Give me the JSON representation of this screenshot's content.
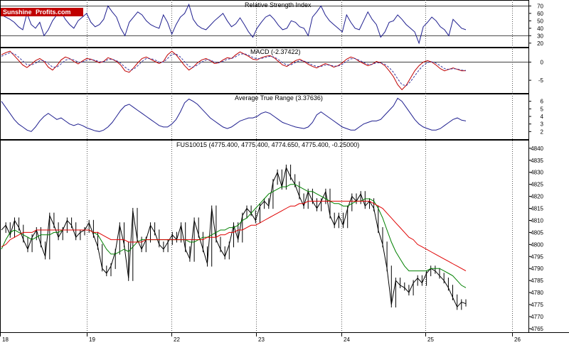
{
  "logo": {
    "part1": "Sunshine",
    "part2": "Profits.com",
    "bg": "#c00000"
  },
  "chart_data": [
    {
      "type": "line",
      "title": "Relative Strength Index",
      "yticks": [
        20,
        30,
        40,
        50,
        60,
        70
      ],
      "ylim": [
        15,
        78
      ],
      "reference_lines": [
        30,
        70
      ],
      "series": [
        {
          "color": "#1f1f8f",
          "values": [
            58,
            55,
            52,
            48,
            42,
            38,
            60,
            45,
            40,
            48,
            30,
            38,
            50,
            58,
            62,
            52,
            45,
            40,
            50,
            55,
            60,
            48,
            42,
            45,
            52,
            70,
            62,
            55,
            40,
            30,
            48,
            55,
            62,
            58,
            50,
            45,
            42,
            40,
            58,
            48,
            32,
            45,
            55,
            60,
            72,
            52,
            44,
            40,
            38,
            44,
            50,
            55,
            60,
            50,
            42,
            46,
            54,
            45,
            35,
            28,
            40,
            48,
            55,
            58,
            52,
            44,
            38,
            40,
            50,
            48,
            42,
            40,
            30,
            55,
            62,
            70,
            58,
            50,
            45,
            40,
            35,
            58,
            48,
            40,
            38,
            50,
            62,
            52,
            45,
            28,
            35,
            48,
            50,
            58,
            52,
            45,
            40,
            35,
            20,
            42,
            48,
            55,
            50,
            42,
            38,
            30,
            52,
            46,
            40,
            38
          ]
        }
      ]
    },
    {
      "type": "line",
      "title": "MACD (-2.37422)",
      "yticks": [
        0,
        -5
      ],
      "ylim": [
        -8.5,
        4
      ],
      "reference_lines": [
        0
      ],
      "series": [
        {
          "color": "#c00000",
          "values": [
            2.0,
            2.6,
            3.0,
            1.8,
            0.5,
            -0.8,
            -1.5,
            -0.6,
            0.4,
            1.0,
            0.2,
            -1.4,
            -2.2,
            -1.0,
            0.6,
            1.4,
            1.0,
            0.2,
            -0.5,
            0.3,
            1.0,
            0.8,
            0.3,
            -0.2,
            0.2,
            1.2,
            0.8,
            0.2,
            -0.8,
            -2.4,
            -2.8,
            -1.6,
            -0.2,
            1.0,
            1.4,
            0.8,
            0.2,
            -0.4,
            0.2,
            2.0,
            3.0,
            2.0,
            0.5,
            -1.0,
            -2.2,
            -1.4,
            -0.2,
            0.6,
            1.0,
            0.4,
            -0.4,
            -0.2,
            0.6,
            1.2,
            1.0,
            2.0,
            2.8,
            2.2,
            1.6,
            0.8,
            0.6,
            1.2,
            1.6,
            1.8,
            1.2,
            0.2,
            -0.8,
            -1.2,
            -0.4,
            0.4,
            0.8,
            0.2,
            -0.6,
            -1.2,
            -1.6,
            -1.0,
            -0.4,
            -0.8,
            -1.4,
            -1.0,
            -0.2,
            0.8,
            1.4,
            1.0,
            0.2,
            -0.4,
            -1.0,
            -0.6,
            0.2,
            -0.2,
            -1.0,
            -2.4,
            -4.0,
            -6.2,
            -7.6,
            -6.4,
            -4.4,
            -2.4,
            -1.0,
            0.0,
            0.4,
            0.0,
            -0.8,
            -1.8,
            -2.4,
            -2.0,
            -1.6,
            -2.0,
            -2.4,
            -2.37
          ]
        },
        {
          "color": "#3a3aa0",
          "values": [
            1.6,
            2.1,
            2.6,
            2.3,
            1.4,
            0.3,
            -0.7,
            -0.8,
            -0.3,
            0.4,
            0.4,
            -0.4,
            -1.4,
            -1.4,
            -0.5,
            0.5,
            0.9,
            0.6,
            0.0,
            0.0,
            0.5,
            0.7,
            0.5,
            0.1,
            0.1,
            0.7,
            0.8,
            0.4,
            -0.3,
            -1.4,
            -2.2,
            -2.0,
            -1.0,
            0.2,
            1.0,
            1.0,
            0.6,
            0.0,
            0.0,
            1.0,
            2.2,
            2.2,
            1.4,
            0.1,
            -1.2,
            -1.4,
            -0.8,
            0.0,
            0.6,
            0.6,
            0.0,
            -0.2,
            0.2,
            0.8,
            1.0,
            1.5,
            2.2,
            2.3,
            1.9,
            1.3,
            0.9,
            1.0,
            1.3,
            1.6,
            1.4,
            0.7,
            -0.2,
            -0.8,
            -0.7,
            -0.1,
            0.4,
            0.3,
            -0.2,
            -0.8,
            -1.2,
            -1.2,
            -0.8,
            -0.8,
            -1.1,
            -1.1,
            -0.6,
            0.2,
            0.9,
            1.0,
            0.5,
            -0.1,
            -0.6,
            -0.6,
            -0.2,
            -0.2,
            -0.6,
            -1.5,
            -2.8,
            -4.6,
            -6.2,
            -6.5,
            -5.4,
            -3.8,
            -2.2,
            -0.9,
            -0.1,
            0.1,
            -0.3,
            -1.0,
            -1.8,
            -2.0,
            -1.8,
            -1.9,
            -2.2,
            -2.3
          ]
        }
      ]
    },
    {
      "type": "line",
      "title": "Average True Range (3.37636)",
      "yticks": [
        2,
        3,
        4,
        5,
        6
      ],
      "ylim": [
        1,
        7
      ],
      "reference_lines": [],
      "series": [
        {
          "color": "#1f1f8f",
          "values": [
            6.0,
            5.2,
            4.4,
            3.6,
            3.0,
            2.6,
            2.2,
            2.0,
            2.6,
            3.4,
            4.0,
            4.4,
            4.0,
            3.6,
            3.8,
            3.4,
            3.0,
            2.8,
            3.0,
            2.8,
            2.5,
            2.3,
            2.1,
            2.0,
            2.2,
            2.6,
            3.2,
            4.0,
            4.8,
            5.4,
            5.6,
            5.2,
            4.8,
            4.4,
            4.0,
            3.6,
            3.2,
            2.8,
            2.6,
            2.6,
            3.0,
            3.6,
            4.6,
            5.8,
            6.3,
            6.0,
            5.6,
            5.0,
            4.4,
            3.8,
            3.4,
            3.0,
            2.6,
            2.4,
            2.6,
            3.0,
            3.4,
            3.6,
            3.8,
            3.8,
            4.0,
            4.4,
            4.6,
            4.4,
            4.0,
            3.6,
            3.2,
            3.0,
            2.8,
            2.6,
            2.5,
            2.4,
            2.6,
            3.2,
            4.2,
            4.6,
            4.2,
            3.8,
            3.4,
            3.0,
            2.6,
            2.4,
            2.2,
            2.2,
            2.6,
            3.0,
            3.2,
            3.4,
            3.4,
            3.6,
            4.2,
            4.8,
            5.4,
            6.4,
            6.0,
            5.2,
            4.4,
            3.6,
            3.0,
            2.6,
            2.4,
            2.2,
            2.2,
            2.4,
            2.8,
            3.2,
            3.6,
            3.8,
            3.5,
            3.4
          ]
        }
      ]
    },
    {
      "type": "line",
      "title": "FUS10015 (4775.400, 4775.400, 4774.650, 4775.400, -0.25000)",
      "yticks": [
        4765,
        4770,
        4775,
        4780,
        4785,
        4790,
        4795,
        4800,
        4805,
        4810,
        4815,
        4820,
        4825,
        4830,
        4835,
        4840
      ],
      "ylim": [
        4763.5,
        4843.5
      ],
      "xticks": [
        "18",
        "19",
        "22",
        "23",
        "24",
        "25",
        "26"
      ],
      "series": [
        {
          "name": "price",
          "color": "#000000",
          "values": [
            4806,
            4808,
            4804,
            4810,
            4807,
            4802,
            4798,
            4803,
            4806,
            4800,
            4795,
            4812,
            4808,
            4803,
            4806,
            4810,
            4808,
            4803,
            4805,
            4806,
            4809,
            4804,
            4799,
            4790,
            4788,
            4791,
            4797,
            4808,
            4800,
            4786,
            4814,
            4802,
            4798,
            4802,
            4808,
            4805,
            4800,
            4798,
            4801,
            4804,
            4802,
            4808,
            4798,
            4794,
            4810,
            4804,
            4798,
            4792,
            4815,
            4802,
            4798,
            4795,
            4800,
            4808,
            4802,
            4812,
            4815,
            4813,
            4810,
            4816,
            4818,
            4816,
            4826,
            4830,
            4824,
            4832,
            4828,
            4825,
            4820,
            4816,
            4822,
            4818,
            4815,
            4818,
            4822,
            4812,
            4808,
            4812,
            4808,
            4815,
            4820,
            4818,
            4821,
            4816,
            4818,
            4815,
            4806,
            4800,
            4790,
            4775,
            4785,
            4783,
            4782,
            4780,
            4784,
            4786,
            4784,
            4788,
            4790,
            4789,
            4787,
            4785,
            4782,
            4778,
            4774,
            4776,
            4775.4
          ]
        },
        {
          "name": "short moving average",
          "color": "#008000",
          "values": [
            4798,
            4802,
            4805,
            4806,
            4805,
            4804,
            4803,
            4802,
            4803,
            4804,
            4804,
            4804,
            4805,
            4805,
            4806,
            4806,
            4806,
            4806,
            4806,
            4806,
            4806,
            4805,
            4804,
            4801,
            4798,
            4796,
            4796,
            4797,
            4798,
            4797,
            4799,
            4801,
            4802,
            4802,
            4802,
            4802,
            4802,
            4802,
            4802,
            4802,
            4802,
            4802,
            4802,
            4801,
            4801,
            4802,
            4803,
            4803,
            4804,
            4805,
            4806,
            4806,
            4807,
            4807,
            4808,
            4810,
            4811,
            4813,
            4815,
            4817,
            4819,
            4821,
            4822,
            4823,
            4824,
            4824,
            4825,
            4825,
            4824,
            4823,
            4822,
            4822,
            4821,
            4820,
            4819,
            4818,
            4817,
            4817,
            4816,
            4816,
            4817,
            4818,
            4818,
            4819,
            4819,
            4818,
            4815,
            4811,
            4806,
            4801,
            4797,
            4794,
            4791,
            4789,
            4789,
            4789,
            4789,
            4789,
            4790,
            4790,
            4790,
            4789,
            4788,
            4787,
            4785,
            4783,
            4782
          ]
        },
        {
          "name": "long moving average",
          "color": "#e00000",
          "values": [
            4799,
            4800,
            4802,
            4803,
            4804,
            4805,
            4805,
            4805,
            4806,
            4806,
            4806,
            4806,
            4806,
            4806,
            4806,
            4806,
            4806,
            4806,
            4806,
            4806,
            4806,
            4805,
            4805,
            4804,
            4803,
            4802,
            4802,
            4802,
            4802,
            4801,
            4801,
            4801,
            4801,
            4802,
            4802,
            4802,
            4802,
            4802,
            4802,
            4802,
            4802,
            4802,
            4802,
            4802,
            4802,
            4802,
            4802,
            4803,
            4803,
            4803,
            4804,
            4804,
            4805,
            4805,
            4806,
            4806,
            4807,
            4808,
            4808,
            4809,
            4810,
            4811,
            4812,
            4813,
            4814,
            4815,
            4816,
            4816,
            4817,
            4817,
            4818,
            4818,
            4818,
            4818,
            4818,
            4818,
            4818,
            4818,
            4818,
            4818,
            4818,
            4818,
            4818,
            4818,
            4818,
            4817,
            4816,
            4815,
            4813,
            4811,
            4809,
            4807,
            4805,
            4803,
            4802,
            4800,
            4799,
            4798,
            4797,
            4796,
            4795,
            4794,
            4793,
            4792,
            4791,
            4790,
            4789
          ]
        }
      ]
    }
  ]
}
